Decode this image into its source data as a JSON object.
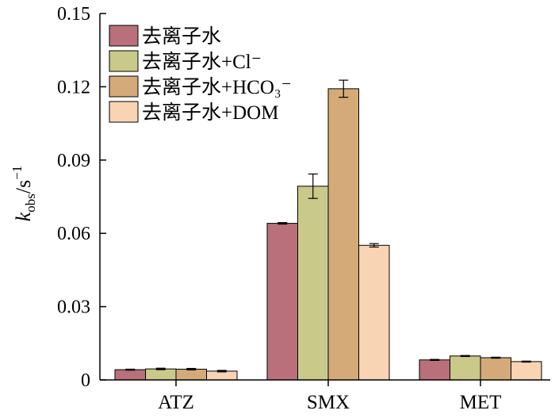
{
  "chart_data": {
    "type": "bar",
    "categories": [
      "ATZ",
      "SMX",
      "MET"
    ],
    "series": [
      {
        "name": "去离子水",
        "color": "#b9707a",
        "values": [
          0.0042,
          0.0641,
          0.0082
        ],
        "errors": [
          0.0002,
          0.0003,
          0.0002
        ]
      },
      {
        "name": "去离子水+Cl⁻",
        "color": "#c9c98a",
        "values": [
          0.0045,
          0.0793,
          0.0098
        ],
        "errors": [
          0.0003,
          0.005,
          0.0002
        ]
      },
      {
        "name": "去离子水+HCO₃⁻",
        "color": "#d4aa78",
        "values": [
          0.0044,
          0.1192,
          0.0091
        ],
        "errors": [
          0.0003,
          0.0035,
          0.0002
        ]
      },
      {
        "name": "去离子水+DOM",
        "color": "#f8d3b4",
        "values": [
          0.0036,
          0.0551,
          0.0075
        ],
        "errors": [
          0.0003,
          0.0007,
          0.0002
        ]
      }
    ],
    "ylabel": {
      "main": "k",
      "sub": "obs",
      "unit": "/s",
      "sup": "−1"
    },
    "ylim": [
      0,
      0.15
    ],
    "yticks": [
      "0",
      "0.03",
      "0.06",
      "0.09",
      "0.12",
      "0.15"
    ],
    "grid": false,
    "legend": {
      "position": "top-left",
      "entries": [
        {
          "base": "去离子水+",
          "ion": "",
          "sub": "",
          "sup": ""
        },
        {
          "base": "去离子水+",
          "ion": "Cl",
          "sub": "",
          "sup": "−"
        },
        {
          "base": "去离子水+",
          "ion": "HCO",
          "sub": "3",
          "sup": "−"
        },
        {
          "base": "去离子水+",
          "ion": "DOM",
          "sub": "",
          "sup": ""
        }
      ]
    }
  }
}
